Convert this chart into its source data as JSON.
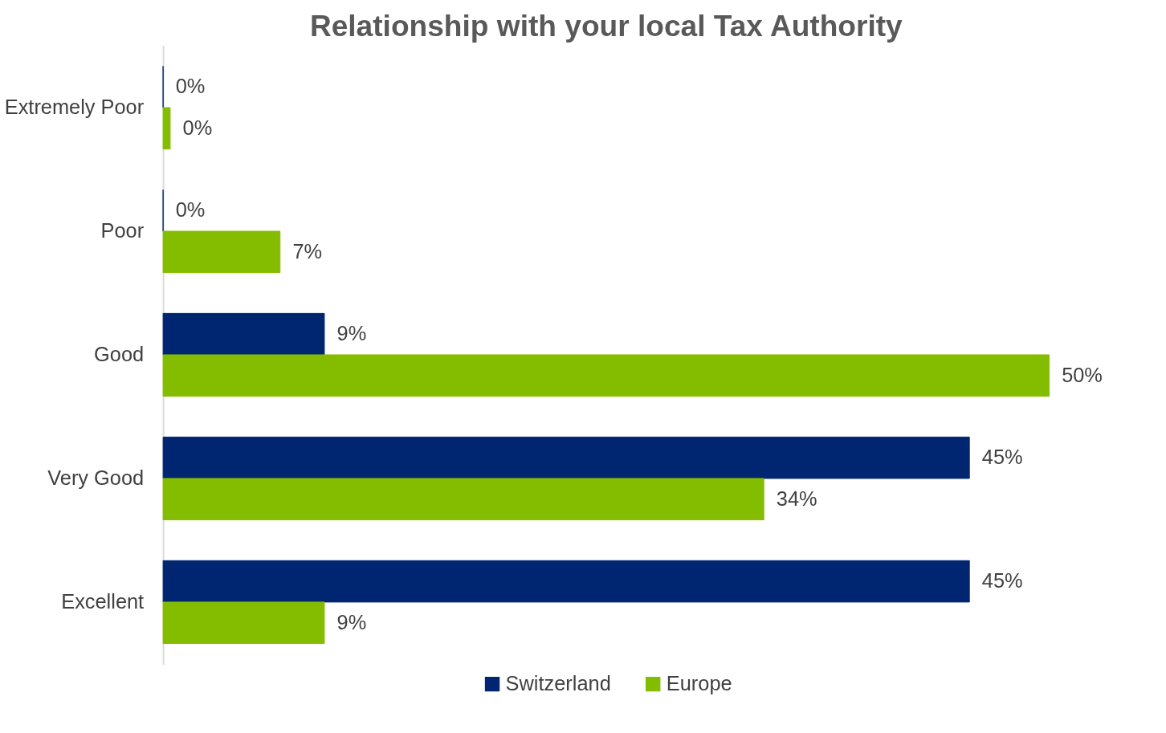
{
  "chart_data": {
    "type": "bar",
    "orientation": "horizontal",
    "title": "Relationship with your local Tax Authority",
    "categories": [
      "Extremely Poor",
      "Poor",
      "Good",
      "Very Good",
      "Excellent"
    ],
    "series": [
      {
        "name": "Switzerland",
        "color": "#002672",
        "values": [
          0,
          0,
          9.1,
          45.5,
          45.5
        ],
        "value_labels": [
          "0%",
          "0%",
          "9%",
          "45%",
          "45%"
        ]
      },
      {
        "name": "Europe",
        "color": "#84bd00",
        "values": [
          0.4,
          6.6,
          50,
          33.9,
          9.1
        ],
        "value_labels": [
          "0%",
          "7%",
          "50%",
          "34%",
          "9%"
        ]
      }
    ],
    "legend": "bottom",
    "grid": false,
    "tick_labels": "y"
  }
}
